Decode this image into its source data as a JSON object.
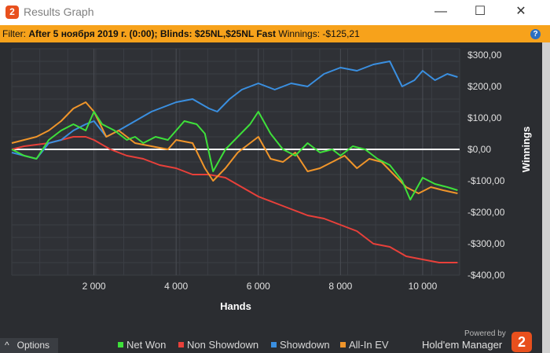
{
  "window": {
    "title": "Results Graph",
    "app_icon_glyph": "2",
    "minimize_glyph": "—",
    "maximize_glyph": "☐",
    "close_glyph": "✕"
  },
  "filter": {
    "label": "Filter:",
    "value": "After 5 ноября 2019 г. (0:00); Blinds: $25NL,$25NL Fast",
    "winnings_label": "Winnings:",
    "winnings_value": "-$125,21",
    "help_glyph": "?"
  },
  "footer": {
    "options_label": "Options",
    "options_glyph": "^",
    "powered_by": "Powered by",
    "brand": "Hold'em Manager",
    "brand_logo_text": "2"
  },
  "colors": {
    "net_won": "#3ee03a",
    "non_showdown": "#e8403a",
    "showdown": "#3a8fe0",
    "all_in_ev": "#f0952a"
  },
  "chart_data": {
    "type": "line",
    "xlabel": "Hands",
    "ylabel": "Winnings",
    "xlim": [
      0,
      10900
    ],
    "ylim": [
      -400,
      320
    ],
    "x_ticks": [
      2000,
      4000,
      6000,
      8000,
      10000
    ],
    "x_tick_labels": [
      "2 000",
      "4 000",
      "6 000",
      "8 000",
      "10 000"
    ],
    "y_ticks": [
      300,
      200,
      100,
      0,
      -100,
      -200,
      -300,
      -400
    ],
    "y_tick_labels": [
      "$300,00",
      "$200,00",
      "$100,00",
      "$0,00",
      "-$100,00",
      "-$200,00",
      "-$300,00",
      "-$400,00"
    ],
    "grid": true,
    "legend_position": "bottom",
    "series": [
      {
        "name": "Net Won",
        "x": [
          0,
          300,
          600,
          900,
          1200,
          1500,
          1800,
          2000,
          2200,
          2500,
          2800,
          3000,
          3200,
          3500,
          3800,
          4000,
          4200,
          4500,
          4700,
          4900,
          5200,
          5500,
          5800,
          6000,
          6300,
          6600,
          6900,
          7200,
          7500,
          7800,
          8000,
          8300,
          8600,
          8900,
          9200,
          9500,
          9700,
          10000,
          10300,
          10600,
          10850
        ],
        "y": [
          0,
          -20,
          -30,
          30,
          60,
          80,
          60,
          120,
          80,
          60,
          30,
          40,
          20,
          40,
          30,
          60,
          90,
          80,
          50,
          -70,
          0,
          40,
          80,
          120,
          50,
          0,
          -20,
          20,
          -10,
          0,
          -20,
          10,
          0,
          -30,
          -50,
          -100,
          -160,
          -90,
          -110,
          -120,
          -130
        ]
      },
      {
        "name": "Non Showdown",
        "x": [
          0,
          300,
          600,
          900,
          1200,
          1500,
          1800,
          2000,
          2400,
          2800,
          3200,
          3600,
          4000,
          4400,
          4800,
          5200,
          5600,
          6000,
          6400,
          6800,
          7200,
          7600,
          8000,
          8400,
          8800,
          9200,
          9600,
          10000,
          10400,
          10850
        ],
        "y": [
          0,
          10,
          15,
          20,
          30,
          40,
          40,
          30,
          0,
          -20,
          -30,
          -50,
          -60,
          -80,
          -80,
          -90,
          -120,
          -150,
          -170,
          -190,
          -210,
          -220,
          -240,
          -260,
          -300,
          -310,
          -340,
          -350,
          -360,
          -360
        ]
      },
      {
        "name": "Showdown",
        "x": [
          0,
          300,
          600,
          900,
          1200,
          1500,
          1800,
          2000,
          2300,
          2600,
          3000,
          3400,
          3800,
          4000,
          4400,
          4800,
          5000,
          5300,
          5600,
          6000,
          6400,
          6800,
          7200,
          7600,
          8000,
          8400,
          8800,
          9200,
          9500,
          9800,
          10000,
          10300,
          10600,
          10850
        ],
        "y": [
          -10,
          -20,
          -30,
          20,
          30,
          60,
          80,
          90,
          40,
          60,
          90,
          120,
          140,
          150,
          160,
          130,
          120,
          160,
          190,
          210,
          190,
          210,
          200,
          240,
          260,
          250,
          270,
          280,
          200,
          220,
          250,
          220,
          240,
          230
        ]
      },
      {
        "name": "All-In EV",
        "x": [
          0,
          300,
          600,
          900,
          1200,
          1500,
          1800,
          2000,
          2300,
          2600,
          3000,
          3400,
          3800,
          4000,
          4400,
          4700,
          4900,
          5200,
          5500,
          5800,
          6000,
          6300,
          6600,
          6900,
          7200,
          7500,
          7800,
          8100,
          8400,
          8700,
          9000,
          9300,
          9600,
          9900,
          10200,
          10500,
          10850
        ],
        "y": [
          20,
          30,
          40,
          60,
          90,
          130,
          150,
          120,
          40,
          60,
          20,
          10,
          0,
          30,
          20,
          -60,
          -100,
          -60,
          -10,
          20,
          40,
          -30,
          -40,
          -10,
          -70,
          -60,
          -40,
          -20,
          -60,
          -30,
          -40,
          -80,
          -120,
          -140,
          -120,
          -130,
          -140
        ]
      }
    ]
  }
}
